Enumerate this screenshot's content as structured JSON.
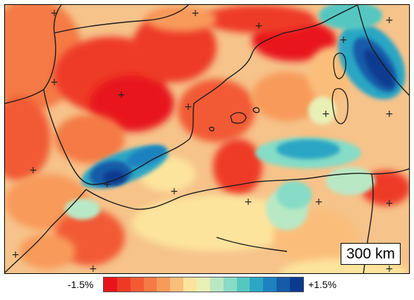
{
  "scale_label": "300 km",
  "colorbar": {
    "min_label": "-1.5%",
    "max_label": "+1.5%",
    "colors": [
      "#e8141c",
      "#ee3a25",
      "#f25a34",
      "#f57a45",
      "#f89a5a",
      "#fbbe7a",
      "#fde49c",
      "#e9f0b5",
      "#b9e8c4",
      "#86dcc6",
      "#55c7c1",
      "#2ba6c4",
      "#1d82bf",
      "#145ca8",
      "#0b3a8f"
    ]
  },
  "map": {
    "palette": {
      "deep_red": "#e8141c",
      "red": "#ee3a25",
      "red_orange": "#f25a34",
      "orange": "#f57a45",
      "light_orange": "#f89a5a",
      "peach": "#fbbe7a",
      "pale_yellow": "#fde49c",
      "pale_green": "#e9f0b5",
      "mint": "#b9e8c4",
      "aqua": "#86dcc6",
      "teal": "#55c7c1",
      "light_blue": "#2ba6c4",
      "blue": "#1d82bf",
      "dark_blue": "#145ca8",
      "navy": "#0b3a8f"
    },
    "background_color": "#f6c38a",
    "coastline_color": "#1a1a1a",
    "marker_symbol": "+"
  }
}
